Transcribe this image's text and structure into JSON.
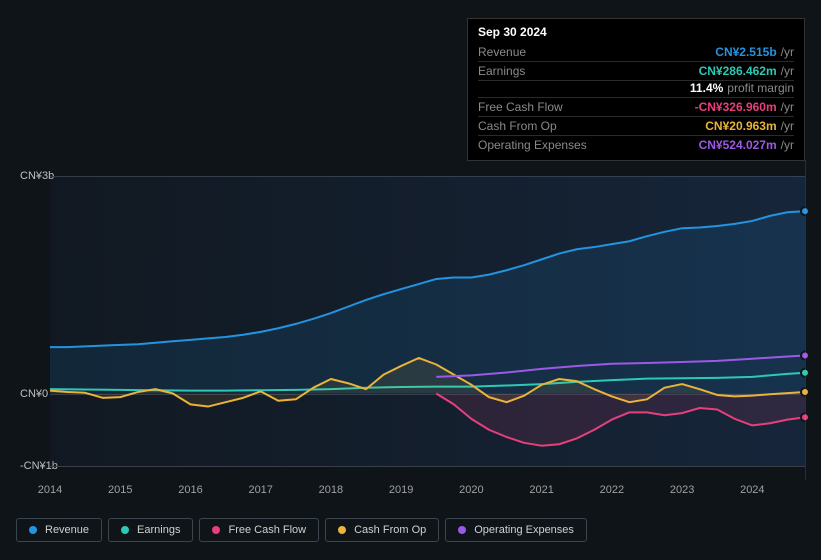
{
  "tooltip": {
    "date": "Sep 30 2024",
    "rows": [
      {
        "key": "revenue",
        "label": "Revenue",
        "value": "CN¥2.515b",
        "suffix": "/yr",
        "color": "#2394df"
      },
      {
        "key": "earnings",
        "label": "Earnings",
        "value": "CN¥286.462m",
        "suffix": "/yr",
        "color": "#2dc9b5",
        "sub": {
          "value": "11.4%",
          "suffix": "profit margin",
          "color": "#ffffff"
        }
      },
      {
        "key": "fcf",
        "label": "Free Cash Flow",
        "value": "-CN¥326.960m",
        "suffix": "/yr",
        "color": "#e6407c"
      },
      {
        "key": "cfo",
        "label": "Cash From Op",
        "value": "CN¥20.963m",
        "suffix": "/yr",
        "color": "#eab33a"
      },
      {
        "key": "opex",
        "label": "Operating Expenses",
        "value": "CN¥524.027m",
        "suffix": "/yr",
        "color": "#9b59e6"
      }
    ]
  },
  "chart": {
    "type": "line",
    "background_color": "#0f1419",
    "grid_color": "#3a3f45",
    "xlim": [
      2014,
      2024.75
    ],
    "ylim": [
      -1000,
      3000
    ],
    "y_ticks": [
      {
        "v": 3000,
        "label": "CN¥3b"
      },
      {
        "v": 0,
        "label": "CN¥0"
      },
      {
        "v": -1000,
        "label": "-CN¥1b"
      }
    ],
    "x_ticks": [
      2014,
      2015,
      2016,
      2017,
      2018,
      2019,
      2020,
      2021,
      2022,
      2023,
      2024
    ],
    "ref_x": 2024.75,
    "x_label_fontsize": 11,
    "y_label_fontsize": 11,
    "line_width": 2,
    "endpoint_radius": 4,
    "series": [
      {
        "name": "Revenue",
        "color": "#2394df",
        "fill_opacity": 0.12,
        "points": [
          [
            2014,
            640
          ],
          [
            2014.25,
            640
          ],
          [
            2014.5,
            650
          ],
          [
            2014.75,
            660
          ],
          [
            2015,
            670
          ],
          [
            2015.25,
            680
          ],
          [
            2015.5,
            700
          ],
          [
            2015.75,
            720
          ],
          [
            2016,
            740
          ],
          [
            2016.25,
            760
          ],
          [
            2016.5,
            780
          ],
          [
            2016.75,
            810
          ],
          [
            2017,
            850
          ],
          [
            2017.25,
            900
          ],
          [
            2017.5,
            960
          ],
          [
            2017.75,
            1030
          ],
          [
            2018,
            1110
          ],
          [
            2018.25,
            1200
          ],
          [
            2018.5,
            1290
          ],
          [
            2018.75,
            1370
          ],
          [
            2019,
            1440
          ],
          [
            2019.25,
            1510
          ],
          [
            2019.5,
            1580
          ],
          [
            2019.75,
            1600
          ],
          [
            2020,
            1600
          ],
          [
            2020.25,
            1640
          ],
          [
            2020.5,
            1700
          ],
          [
            2020.75,
            1770
          ],
          [
            2021,
            1850
          ],
          [
            2021.25,
            1930
          ],
          [
            2021.5,
            1990
          ],
          [
            2021.75,
            2020
          ],
          [
            2022,
            2060
          ],
          [
            2022.25,
            2100
          ],
          [
            2022.5,
            2170
          ],
          [
            2022.75,
            2230
          ],
          [
            2023,
            2280
          ],
          [
            2023.25,
            2290
          ],
          [
            2023.5,
            2310
          ],
          [
            2023.75,
            2340
          ],
          [
            2024,
            2380
          ],
          [
            2024.25,
            2450
          ],
          [
            2024.5,
            2500
          ],
          [
            2024.75,
            2515
          ]
        ]
      },
      {
        "name": "Earnings",
        "color": "#2dc9b5",
        "fill_opacity": 0,
        "points": [
          [
            2014,
            60
          ],
          [
            2014.5,
            55
          ],
          [
            2015,
            50
          ],
          [
            2015.5,
            45
          ],
          [
            2016,
            40
          ],
          [
            2016.5,
            40
          ],
          [
            2017,
            45
          ],
          [
            2017.5,
            50
          ],
          [
            2018,
            60
          ],
          [
            2018.5,
            80
          ],
          [
            2019,
            90
          ],
          [
            2019.5,
            95
          ],
          [
            2020,
            95
          ],
          [
            2020.5,
            110
          ],
          [
            2021,
            130
          ],
          [
            2021.5,
            160
          ],
          [
            2022,
            185
          ],
          [
            2022.5,
            205
          ],
          [
            2023,
            210
          ],
          [
            2023.5,
            215
          ],
          [
            2024,
            230
          ],
          [
            2024.5,
            270
          ],
          [
            2024.75,
            286
          ]
        ]
      },
      {
        "name": "Free Cash Flow",
        "color": "#e6407c",
        "fill_opacity": 0.12,
        "points": [
          [
            2019.5,
            0
          ],
          [
            2019.75,
            -150
          ],
          [
            2020,
            -350
          ],
          [
            2020.25,
            -500
          ],
          [
            2020.5,
            -600
          ],
          [
            2020.75,
            -680
          ],
          [
            2021,
            -720
          ],
          [
            2021.25,
            -700
          ],
          [
            2021.5,
            -620
          ],
          [
            2021.75,
            -500
          ],
          [
            2022,
            -360
          ],
          [
            2022.25,
            -260
          ],
          [
            2022.5,
            -260
          ],
          [
            2022.75,
            -300
          ],
          [
            2023,
            -270
          ],
          [
            2023.25,
            -200
          ],
          [
            2023.5,
            -220
          ],
          [
            2023.75,
            -350
          ],
          [
            2024,
            -440
          ],
          [
            2024.25,
            -410
          ],
          [
            2024.5,
            -360
          ],
          [
            2024.75,
            -327
          ]
        ]
      },
      {
        "name": "Cash From Op",
        "color": "#eab33a",
        "fill_opacity": 0.1,
        "points": [
          [
            2014,
            40
          ],
          [
            2014.25,
            20
          ],
          [
            2014.5,
            10
          ],
          [
            2014.75,
            -60
          ],
          [
            2015,
            -50
          ],
          [
            2015.25,
            20
          ],
          [
            2015.5,
            60
          ],
          [
            2015.75,
            0
          ],
          [
            2016,
            -150
          ],
          [
            2016.25,
            -180
          ],
          [
            2016.5,
            -120
          ],
          [
            2016.75,
            -60
          ],
          [
            2017,
            30
          ],
          [
            2017.25,
            -100
          ],
          [
            2017.5,
            -80
          ],
          [
            2017.75,
            80
          ],
          [
            2018,
            200
          ],
          [
            2018.25,
            140
          ],
          [
            2018.5,
            60
          ],
          [
            2018.75,
            260
          ],
          [
            2019,
            380
          ],
          [
            2019.25,
            490
          ],
          [
            2019.5,
            400
          ],
          [
            2019.75,
            260
          ],
          [
            2020,
            120
          ],
          [
            2020.25,
            -50
          ],
          [
            2020.5,
            -120
          ],
          [
            2020.75,
            -30
          ],
          [
            2021,
            120
          ],
          [
            2021.25,
            200
          ],
          [
            2021.5,
            170
          ],
          [
            2021.75,
            60
          ],
          [
            2022,
            -40
          ],
          [
            2022.25,
            -120
          ],
          [
            2022.5,
            -80
          ],
          [
            2022.75,
            80
          ],
          [
            2023,
            130
          ],
          [
            2023.25,
            60
          ],
          [
            2023.5,
            -20
          ],
          [
            2023.75,
            -40
          ],
          [
            2024,
            -30
          ],
          [
            2024.25,
            -10
          ],
          [
            2024.5,
            5
          ],
          [
            2024.75,
            21
          ]
        ]
      },
      {
        "name": "Operating Expenses",
        "color": "#9b59e6",
        "fill_opacity": 0,
        "points": [
          [
            2019.5,
            230
          ],
          [
            2019.75,
            240
          ],
          [
            2020,
            250
          ],
          [
            2020.5,
            290
          ],
          [
            2021,
            340
          ],
          [
            2021.5,
            380
          ],
          [
            2022,
            410
          ],
          [
            2022.5,
            420
          ],
          [
            2023,
            435
          ],
          [
            2023.5,
            450
          ],
          [
            2024,
            480
          ],
          [
            2024.5,
            510
          ],
          [
            2024.75,
            524
          ]
        ]
      }
    ]
  },
  "legend": {
    "items": [
      {
        "label": "Revenue",
        "color": "#2394df"
      },
      {
        "label": "Earnings",
        "color": "#2dc9b5"
      },
      {
        "label": "Free Cash Flow",
        "color": "#e6407c"
      },
      {
        "label": "Cash From Op",
        "color": "#eab33a"
      },
      {
        "label": "Operating Expenses",
        "color": "#9b59e6"
      }
    ]
  }
}
